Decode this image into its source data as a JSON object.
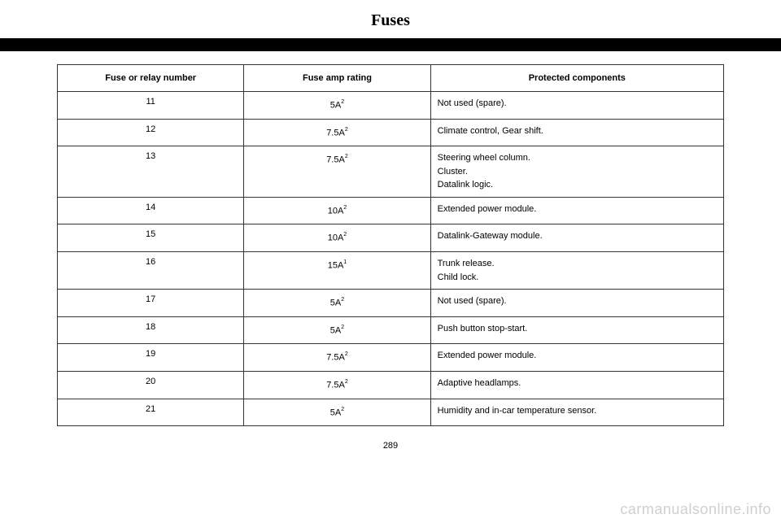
{
  "page": {
    "title": "Fuses",
    "number": "289"
  },
  "table": {
    "headers": {
      "number": "Fuse or relay number",
      "rating": "Fuse amp rating",
      "protected": "Protected components"
    },
    "rows": [
      {
        "number": "11",
        "rating": "5A",
        "sup": "2",
        "protected": [
          "Not used (spare)."
        ]
      },
      {
        "number": "12",
        "rating": "7.5A",
        "sup": "2",
        "protected": [
          "Climate control, Gear shift."
        ]
      },
      {
        "number": "13",
        "rating": "7.5A",
        "sup": "2",
        "protected": [
          "Steering wheel column.",
          "Cluster.",
          "Datalink logic."
        ]
      },
      {
        "number": "14",
        "rating": "10A",
        "sup": "2",
        "protected": [
          "Extended power module."
        ]
      },
      {
        "number": "15",
        "rating": "10A",
        "sup": "2",
        "protected": [
          "Datalink-Gateway module."
        ]
      },
      {
        "number": "16",
        "rating": "15A",
        "sup": "1",
        "protected": [
          "Trunk release.",
          "Child lock."
        ]
      },
      {
        "number": "17",
        "rating": "5A",
        "sup": "2",
        "protected": [
          "Not used (spare)."
        ]
      },
      {
        "number": "18",
        "rating": "5A",
        "sup": "2",
        "protected": [
          "Push button stop-start."
        ]
      },
      {
        "number": "19",
        "rating": "7.5A",
        "sup": "2",
        "protected": [
          "Extended power module."
        ]
      },
      {
        "number": "20",
        "rating": "7.5A",
        "sup": "2",
        "protected": [
          "Adaptive headlamps."
        ]
      },
      {
        "number": "21",
        "rating": "5A",
        "sup": "2",
        "protected": [
          "Humidity and in-car temperature sensor."
        ]
      }
    ]
  },
  "watermark": "carmanualsonline.info"
}
